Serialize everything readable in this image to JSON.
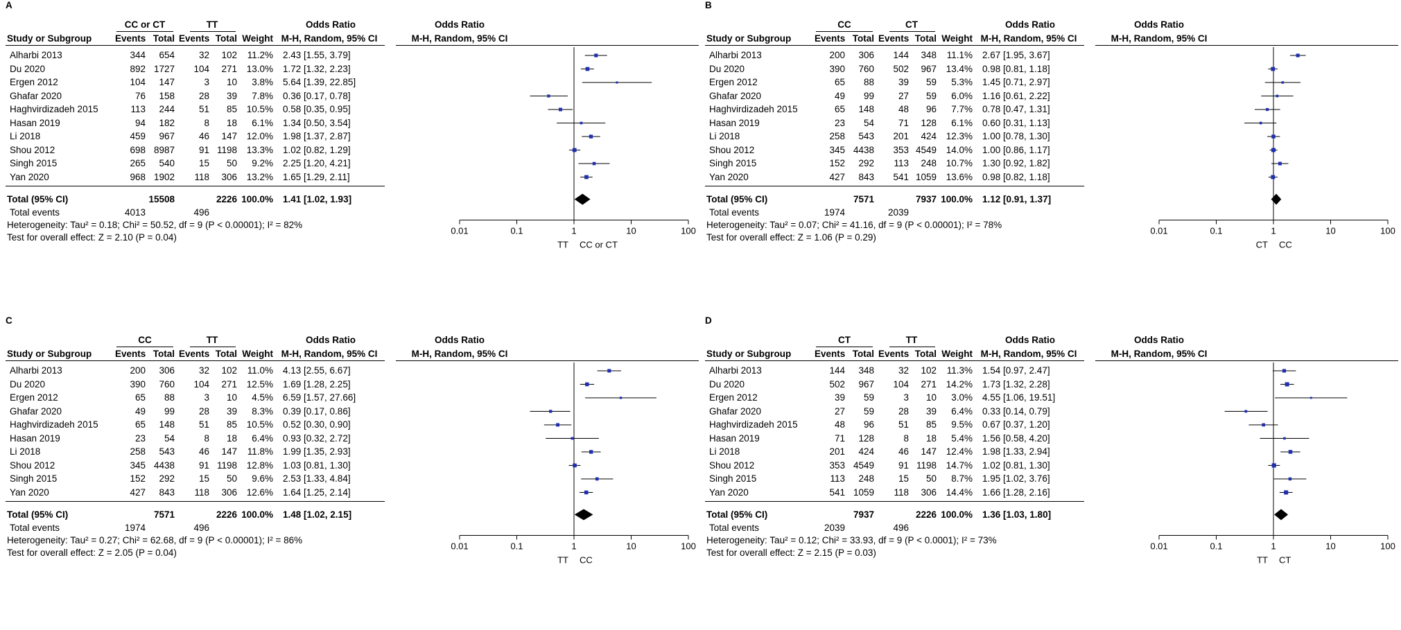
{
  "headers": {
    "study": "Study or Subgroup",
    "events": "Events",
    "total": "Total",
    "weight": "Weight",
    "odds_ratio": "Odds Ratio",
    "method": "M-H, Random, 95% CI",
    "total_row_label": "Total (95% CI)",
    "total_events_label": "Total events"
  },
  "chart_data": [
    {
      "type": "forest",
      "panel": "A",
      "group1": "CC or CT",
      "group2": "TT",
      "favours_left": "TT",
      "favours_right": "CC or CT",
      "xscale": "log",
      "xlim": [
        0.01,
        100
      ],
      "tick_labels": [
        "0.01",
        "0.1",
        "1",
        "10",
        "100"
      ],
      "studies": [
        {
          "name": "Alharbi 2013",
          "e1": "344",
          "n1": "654",
          "e2": "32",
          "n2": "102",
          "weight": "11.2%",
          "ci": "2.43 [1.55, 3.79]",
          "or": 2.43,
          "lo": 1.55,
          "hi": 3.79
        },
        {
          "name": "Du 2020",
          "e1": "892",
          "n1": "1727",
          "e2": "104",
          "n2": "271",
          "weight": "13.0%",
          "ci": "1.72 [1.32, 2.23]",
          "or": 1.72,
          "lo": 1.32,
          "hi": 2.23
        },
        {
          "name": "Ergen 2012",
          "e1": "104",
          "n1": "147",
          "e2": "3",
          "n2": "10",
          "weight": "3.8%",
          "ci": "5.64 [1.39, 22.85]",
          "or": 5.64,
          "lo": 1.39,
          "hi": 22.85
        },
        {
          "name": "Ghafar 2020",
          "e1": "76",
          "n1": "158",
          "e2": "28",
          "n2": "39",
          "weight": "7.8%",
          "ci": "0.36 [0.17, 0.78]",
          "or": 0.36,
          "lo": 0.17,
          "hi": 0.78
        },
        {
          "name": "Haghvirdizadeh 2015",
          "e1": "113",
          "n1": "244",
          "e2": "51",
          "n2": "85",
          "weight": "10.5%",
          "ci": "0.58 [0.35, 0.95]",
          "or": 0.58,
          "lo": 0.35,
          "hi": 0.95
        },
        {
          "name": "Hasan 2019",
          "e1": "94",
          "n1": "182",
          "e2": "8",
          "n2": "18",
          "weight": "6.1%",
          "ci": "1.34 [0.50, 3.54]",
          "or": 1.34,
          "lo": 0.5,
          "hi": 3.54
        },
        {
          "name": "Li 2018",
          "e1": "459",
          "n1": "967",
          "e2": "46",
          "n2": "147",
          "weight": "12.0%",
          "ci": "1.98 [1.37, 2.87]",
          "or": 1.98,
          "lo": 1.37,
          "hi": 2.87
        },
        {
          "name": "Shou 2012",
          "e1": "698",
          "n1": "8987",
          "e2": "91",
          "n2": "1198",
          "weight": "13.3%",
          "ci": "1.02 [0.82, 1.29]",
          "or": 1.02,
          "lo": 0.82,
          "hi": 1.29
        },
        {
          "name": "Singh 2015",
          "e1": "265",
          "n1": "540",
          "e2": "15",
          "n2": "50",
          "weight": "9.2%",
          "ci": "2.25 [1.20, 4.21]",
          "or": 2.25,
          "lo": 1.2,
          "hi": 4.21
        },
        {
          "name": "Yan 2020",
          "e1": "968",
          "n1": "1902",
          "e2": "118",
          "n2": "306",
          "weight": "13.2%",
          "ci": "1.65 [1.29, 2.11]",
          "or": 1.65,
          "lo": 1.29,
          "hi": 2.11
        }
      ],
      "total": {
        "n1": "15508",
        "n2": "2226",
        "weight": "100.0%",
        "ci": "1.41 [1.02, 1.93]",
        "or": 1.41,
        "lo": 1.02,
        "hi": 1.93,
        "events1": "4013",
        "events2": "496"
      },
      "heterogeneity": "Heterogeneity: Tau² = 0.18; Chi² = 50.52, df = 9 (P < 0.00001); I² = 82%",
      "overall_effect": "Test for overall effect: Z = 2.10 (P = 0.04)"
    },
    {
      "type": "forest",
      "panel": "B",
      "group1": "CC",
      "group2": "CT",
      "favours_left": "CT",
      "favours_right": "CC",
      "xscale": "log",
      "xlim": [
        0.01,
        100
      ],
      "tick_labels": [
        "0.01",
        "0.1",
        "1",
        "10",
        "100"
      ],
      "studies": [
        {
          "name": "Alharbi 2013",
          "e1": "200",
          "n1": "306",
          "e2": "144",
          "n2": "348",
          "weight": "11.1%",
          "ci": "2.67 [1.95, 3.67]",
          "or": 2.67,
          "lo": 1.95,
          "hi": 3.67
        },
        {
          "name": "Du 2020",
          "e1": "390",
          "n1": "760",
          "e2": "502",
          "n2": "967",
          "weight": "13.4%",
          "ci": "0.98 [0.81, 1.18]",
          "or": 0.98,
          "lo": 0.81,
          "hi": 1.18
        },
        {
          "name": "Ergen 2012",
          "e1": "65",
          "n1": "88",
          "e2": "39",
          "n2": "59",
          "weight": "5.3%",
          "ci": "1.45 [0.71, 2.97]",
          "or": 1.45,
          "lo": 0.71,
          "hi": 2.97
        },
        {
          "name": "Ghafar 2020",
          "e1": "49",
          "n1": "99",
          "e2": "27",
          "n2": "59",
          "weight": "6.0%",
          "ci": "1.16 [0.61, 2.22]",
          "or": 1.16,
          "lo": 0.61,
          "hi": 2.22
        },
        {
          "name": "Haghvirdizadeh 2015",
          "e1": "65",
          "n1": "148",
          "e2": "48",
          "n2": "96",
          "weight": "7.7%",
          "ci": "0.78 [0.47, 1.31]",
          "or": 0.78,
          "lo": 0.47,
          "hi": 1.31
        },
        {
          "name": "Hasan 2019",
          "e1": "23",
          "n1": "54",
          "e2": "71",
          "n2": "128",
          "weight": "6.1%",
          "ci": "0.60 [0.31, 1.13]",
          "or": 0.6,
          "lo": 0.31,
          "hi": 1.13
        },
        {
          "name": "Li 2018",
          "e1": "258",
          "n1": "543",
          "e2": "201",
          "n2": "424",
          "weight": "12.3%",
          "ci": "1.00 [0.78, 1.30]",
          "or": 1.0,
          "lo": 0.78,
          "hi": 1.3
        },
        {
          "name": "Shou 2012",
          "e1": "345",
          "n1": "4438",
          "e2": "353",
          "n2": "4549",
          "weight": "14.0%",
          "ci": "1.00 [0.86, 1.17]",
          "or": 1.0,
          "lo": 0.86,
          "hi": 1.17
        },
        {
          "name": "Singh 2015",
          "e1": "152",
          "n1": "292",
          "e2": "113",
          "n2": "248",
          "weight": "10.7%",
          "ci": "1.30 [0.92, 1.82]",
          "or": 1.3,
          "lo": 0.92,
          "hi": 1.82
        },
        {
          "name": "Yan 2020",
          "e1": "427",
          "n1": "843",
          "e2": "541",
          "n2": "1059",
          "weight": "13.6%",
          "ci": "0.98 [0.82, 1.18]",
          "or": 0.98,
          "lo": 0.82,
          "hi": 1.18
        }
      ],
      "total": {
        "n1": "7571",
        "n2": "7937",
        "weight": "100.0%",
        "ci": "1.12 [0.91, 1.37]",
        "or": 1.12,
        "lo": 0.91,
        "hi": 1.37,
        "events1": "1974",
        "events2": "2039"
      },
      "heterogeneity": "Heterogeneity: Tau² = 0.07; Chi² = 41.16, df = 9 (P < 0.00001); I² = 78%",
      "overall_effect": "Test for overall effect: Z = 1.06 (P = 0.29)"
    },
    {
      "type": "forest",
      "panel": "C",
      "group1": "CC",
      "group2": "TT",
      "favours_left": "TT",
      "favours_right": "CC",
      "xscale": "log",
      "xlim": [
        0.01,
        100
      ],
      "tick_labels": [
        "0.01",
        "0.1",
        "1",
        "10",
        "100"
      ],
      "studies": [
        {
          "name": "Alharbi 2013",
          "e1": "200",
          "n1": "306",
          "e2": "32",
          "n2": "102",
          "weight": "11.0%",
          "ci": "4.13 [2.55, 6.67]",
          "or": 4.13,
          "lo": 2.55,
          "hi": 6.67
        },
        {
          "name": "Du 2020",
          "e1": "390",
          "n1": "760",
          "e2": "104",
          "n2": "271",
          "weight": "12.5%",
          "ci": "1.69 [1.28, 2.25]",
          "or": 1.69,
          "lo": 1.28,
          "hi": 2.25
        },
        {
          "name": "Ergen 2012",
          "e1": "65",
          "n1": "88",
          "e2": "3",
          "n2": "10",
          "weight": "4.5%",
          "ci": "6.59 [1.57, 27.66]",
          "or": 6.59,
          "lo": 1.57,
          "hi": 27.66
        },
        {
          "name": "Ghafar 2020",
          "e1": "49",
          "n1": "99",
          "e2": "28",
          "n2": "39",
          "weight": "8.3%",
          "ci": "0.39 [0.17, 0.86]",
          "or": 0.39,
          "lo": 0.17,
          "hi": 0.86
        },
        {
          "name": "Haghvirdizadeh 2015",
          "e1": "65",
          "n1": "148",
          "e2": "51",
          "n2": "85",
          "weight": "10.5%",
          "ci": "0.52 [0.30, 0.90]",
          "or": 0.52,
          "lo": 0.3,
          "hi": 0.9
        },
        {
          "name": "Hasan 2019",
          "e1": "23",
          "n1": "54",
          "e2": "8",
          "n2": "18",
          "weight": "6.4%",
          "ci": "0.93 [0.32, 2.72]",
          "or": 0.93,
          "lo": 0.32,
          "hi": 2.72
        },
        {
          "name": "Li 2018",
          "e1": "258",
          "n1": "543",
          "e2": "46",
          "n2": "147",
          "weight": "11.8%",
          "ci": "1.99 [1.35, 2.93]",
          "or": 1.99,
          "lo": 1.35,
          "hi": 2.93
        },
        {
          "name": "Shou 2012",
          "e1": "345",
          "n1": "4438",
          "e2": "91",
          "n2": "1198",
          "weight": "12.8%",
          "ci": "1.03 [0.81, 1.30]",
          "or": 1.03,
          "lo": 0.81,
          "hi": 1.3
        },
        {
          "name": "Singh 2015",
          "e1": "152",
          "n1": "292",
          "e2": "15",
          "n2": "50",
          "weight": "9.6%",
          "ci": "2.53 [1.33, 4.84]",
          "or": 2.53,
          "lo": 1.33,
          "hi": 4.84
        },
        {
          "name": "Yan 2020",
          "e1": "427",
          "n1": "843",
          "e2": "118",
          "n2": "306",
          "weight": "12.6%",
          "ci": "1.64 [1.25, 2.14]",
          "or": 1.64,
          "lo": 1.25,
          "hi": 2.14
        }
      ],
      "total": {
        "n1": "7571",
        "n2": "2226",
        "weight": "100.0%",
        "ci": "1.48 [1.02, 2.15]",
        "or": 1.48,
        "lo": 1.02,
        "hi": 2.15,
        "events1": "1974",
        "events2": "496"
      },
      "heterogeneity": "Heterogeneity: Tau² = 0.27; Chi² = 62.68, df = 9 (P < 0.00001); I² = 86%",
      "overall_effect": "Test for overall effect: Z = 2.05 (P = 0.04)"
    },
    {
      "type": "forest",
      "panel": "D",
      "group1": "CT",
      "group2": "TT",
      "favours_left": "TT",
      "favours_right": "CT",
      "xscale": "log",
      "xlim": [
        0.01,
        100
      ],
      "tick_labels": [
        "0.01",
        "0.1",
        "1",
        "10",
        "100"
      ],
      "studies": [
        {
          "name": "Alharbi 2013",
          "e1": "144",
          "n1": "348",
          "e2": "32",
          "n2": "102",
          "weight": "11.3%",
          "ci": "1.54 [0.97, 2.47]",
          "or": 1.54,
          "lo": 0.97,
          "hi": 2.47
        },
        {
          "name": "Du 2020",
          "e1": "502",
          "n1": "967",
          "e2": "104",
          "n2": "271",
          "weight": "14.2%",
          "ci": "1.73 [1.32, 2.28]",
          "or": 1.73,
          "lo": 1.32,
          "hi": 2.28
        },
        {
          "name": "Ergen 2012",
          "e1": "39",
          "n1": "59",
          "e2": "3",
          "n2": "10",
          "weight": "3.0%",
          "ci": "4.55 [1.06, 19.51]",
          "or": 4.55,
          "lo": 1.06,
          "hi": 19.51
        },
        {
          "name": "Ghafar 2020",
          "e1": "27",
          "n1": "59",
          "e2": "28",
          "n2": "39",
          "weight": "6.4%",
          "ci": "0.33 [0.14, 0.79]",
          "or": 0.33,
          "lo": 0.14,
          "hi": 0.79
        },
        {
          "name": "Haghvirdizadeh 2015",
          "e1": "48",
          "n1": "96",
          "e2": "51",
          "n2": "85",
          "weight": "9.5%",
          "ci": "0.67 [0.37, 1.20]",
          "or": 0.67,
          "lo": 0.37,
          "hi": 1.2
        },
        {
          "name": "Hasan 2019",
          "e1": "71",
          "n1": "128",
          "e2": "8",
          "n2": "18",
          "weight": "5.4%",
          "ci": "1.56 [0.58, 4.20]",
          "or": 1.56,
          "lo": 0.58,
          "hi": 4.2
        },
        {
          "name": "Li 2018",
          "e1": "201",
          "n1": "424",
          "e2": "46",
          "n2": "147",
          "weight": "12.4%",
          "ci": "1.98 [1.33, 2.94]",
          "or": 1.98,
          "lo": 1.33,
          "hi": 2.94
        },
        {
          "name": "Shou 2012",
          "e1": "353",
          "n1": "4549",
          "e2": "91",
          "n2": "1198",
          "weight": "14.7%",
          "ci": "1.02 [0.81, 1.30]",
          "or": 1.02,
          "lo": 0.81,
          "hi": 1.3
        },
        {
          "name": "Singh 2015",
          "e1": "113",
          "n1": "248",
          "e2": "15",
          "n2": "50",
          "weight": "8.7%",
          "ci": "1.95 [1.02, 3.76]",
          "or": 1.95,
          "lo": 1.02,
          "hi": 3.76
        },
        {
          "name": "Yan 2020",
          "e1": "541",
          "n1": "1059",
          "e2": "118",
          "n2": "306",
          "weight": "14.4%",
          "ci": "1.66 [1.28, 2.16]",
          "or": 1.66,
          "lo": 1.28,
          "hi": 2.16
        }
      ],
      "total": {
        "n1": "7937",
        "n2": "2226",
        "weight": "100.0%",
        "ci": "1.36 [1.03, 1.80]",
        "or": 1.36,
        "lo": 1.03,
        "hi": 1.8,
        "events1": "2039",
        "events2": "496"
      },
      "heterogeneity": "Heterogeneity: Tau² = 0.12; Chi² = 33.93, df = 9 (P < 0.0001); I² = 73%",
      "overall_effect": "Test for overall effect: Z = 2.15 (P = 0.03)"
    }
  ]
}
